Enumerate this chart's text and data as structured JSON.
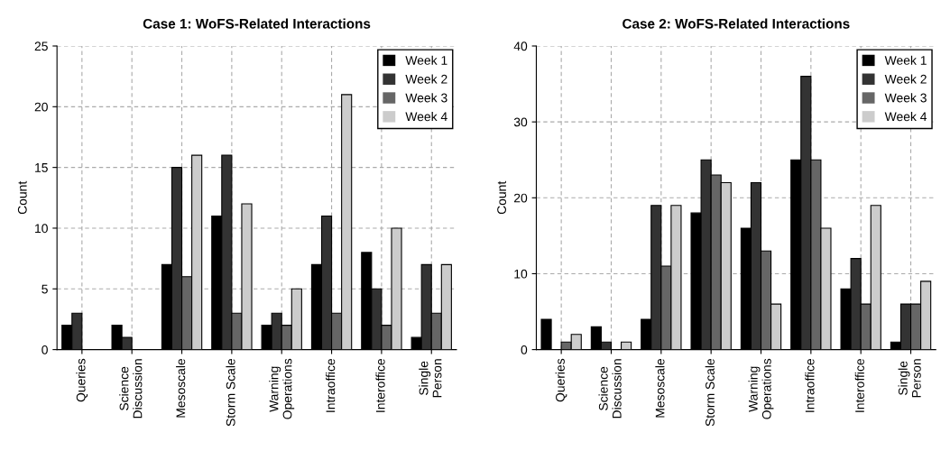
{
  "chart_data": [
    {
      "type": "bar",
      "title": "Case 1: WoFS-Related Interactions",
      "ylabel": "Count",
      "categories": [
        "Queries",
        "Science\nDiscussion",
        "Mesoscale",
        "Storm Scale",
        "Warning\nOperations",
        "Intraoffice",
        "Interoffice",
        "Single\nPerson"
      ],
      "series": [
        {
          "name": "Week 1",
          "color": "#000000",
          "values": [
            2,
            2,
            7,
            11,
            2,
            7,
            8,
            1
          ]
        },
        {
          "name": "Week 2",
          "color": "#333333",
          "values": [
            3,
            1,
            15,
            16,
            3,
            11,
            5,
            7
          ]
        },
        {
          "name": "Week 3",
          "color": "#666666",
          "values": [
            0,
            0,
            6,
            3,
            2,
            3,
            2,
            3
          ]
        },
        {
          "name": "Week 4",
          "color": "#cccccc",
          "values": [
            0,
            0,
            16,
            12,
            5,
            21,
            10,
            7
          ]
        }
      ],
      "ylim": [
        0,
        25
      ],
      "yticks": [
        0,
        5,
        10,
        15,
        20,
        25
      ],
      "grid": true,
      "legend": "top right"
    },
    {
      "type": "bar",
      "title": "Case 2: WoFS-Related Interactions",
      "ylabel": "Count",
      "categories": [
        "Queries",
        "Science\nDiscussion",
        "Mesoscale",
        "Storm Scale",
        "Warning\nOperations",
        "Intraoffice",
        "Interoffice",
        "Single\nPerson"
      ],
      "series": [
        {
          "name": "Week 1",
          "color": "#000000",
          "values": [
            4,
            3,
            4,
            18,
            16,
            25,
            8,
            1
          ]
        },
        {
          "name": "Week 2",
          "color": "#333333",
          "values": [
            0,
            1,
            19,
            25,
            22,
            36,
            12,
            6
          ]
        },
        {
          "name": "Week 3",
          "color": "#666666",
          "values": [
            1,
            0,
            11,
            23,
            13,
            25,
            6,
            6
          ]
        },
        {
          "name": "Week 4",
          "color": "#cccccc",
          "values": [
            2,
            1,
            19,
            22,
            6,
            16,
            19,
            9
          ]
        }
      ],
      "ylim": [
        0,
        40
      ],
      "yticks": [
        0,
        10,
        20,
        30,
        40
      ],
      "grid": true,
      "legend": "top right"
    }
  ]
}
